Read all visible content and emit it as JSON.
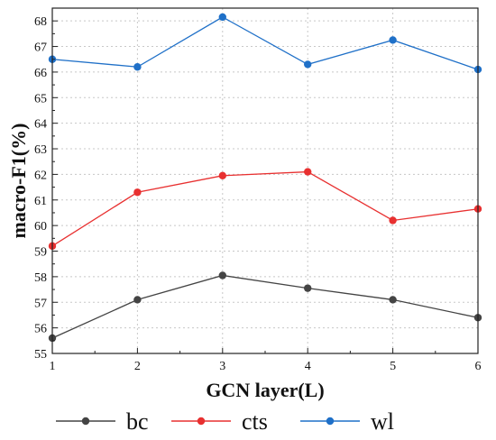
{
  "chart_data": {
    "type": "line",
    "x": [
      1,
      2,
      3,
      4,
      5,
      6
    ],
    "xlabel": "GCN layer(L)",
    "ylabel": "macro-F1(%)",
    "xlim": [
      1,
      6
    ],
    "ylim": [
      55,
      68.5
    ],
    "xticks": [
      "1",
      "2",
      "3",
      "4",
      "5",
      "6"
    ],
    "yticks": [
      "55",
      "56",
      "57",
      "58",
      "59",
      "60",
      "61",
      "62",
      "63",
      "64",
      "65",
      "66",
      "67",
      "68"
    ],
    "grid": "dotted",
    "legend_position": "bottom",
    "series": [
      {
        "name": "bc",
        "color": "#444444",
        "values": [
          55.6,
          57.1,
          58.05,
          57.55,
          57.1,
          56.4
        ]
      },
      {
        "name": "cts",
        "color": "#e83030",
        "values": [
          59.2,
          61.3,
          61.95,
          62.1,
          60.2,
          60.65
        ]
      },
      {
        "name": "wl",
        "color": "#1f70c8",
        "values": [
          66.5,
          66.2,
          68.15,
          66.3,
          67.25,
          66.1
        ]
      }
    ]
  }
}
